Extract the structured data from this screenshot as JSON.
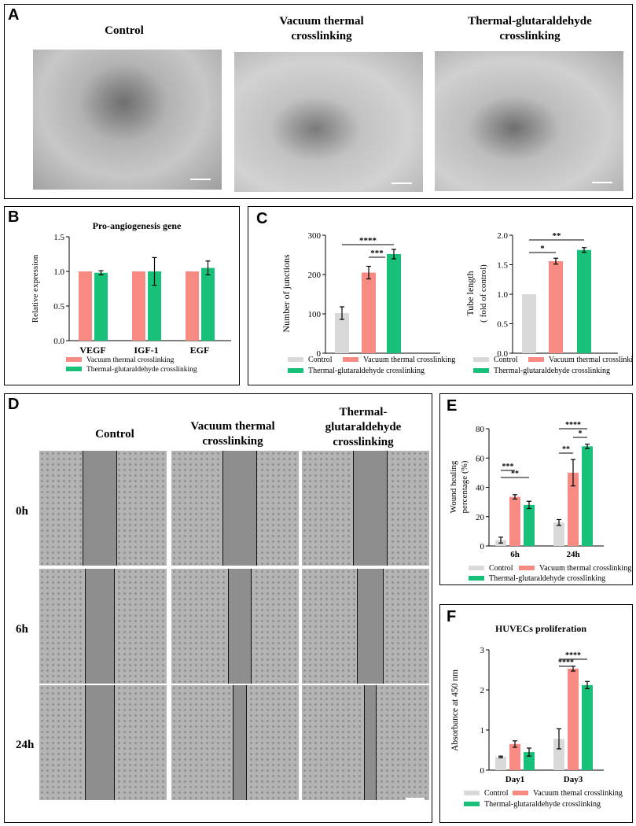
{
  "colors": {
    "control": "#d9d9d9",
    "vacuum": "#f88a84",
    "glut": "#19c07a"
  },
  "panelA": {
    "label": "A",
    "titles": [
      [
        "Control"
      ],
      [
        "Vacuum thermal",
        "crosslinking"
      ],
      [
        "Thermal-glutaraldehyde",
        "crosslinking"
      ]
    ]
  },
  "panelD": {
    "label": "D",
    "titles": [
      [
        "Control"
      ],
      [
        "Vacuum thermal",
        "crosslinking"
      ],
      [
        "Thermal-",
        "glutaraldehyde",
        "crosslinking"
      ]
    ],
    "rows": [
      "0h",
      "6h",
      "24h"
    ],
    "gap_fraction": [
      [
        0.27,
        0.27,
        0.27
      ],
      [
        0.24,
        0.19,
        0.21
      ],
      [
        0.24,
        0.11,
        0.1
      ]
    ]
  },
  "legend": {
    "control": "Control",
    "vacuum": "Vacuum thermal crosslinking",
    "glut": "Thermal-glutaraldehyde crosslinking",
    "vacuum_F": "Vacuum themal crosslinking"
  },
  "chart_data": [
    {
      "panel": "B",
      "type": "bar",
      "title": "Pro-angiogenesis gene",
      "categories": [
        "VEGF",
        "IGF-1",
        "EGF"
      ],
      "ylabel": "Relative expression",
      "ylim": [
        0,
        1.5
      ],
      "yticks": [
        0.0,
        0.5,
        1.0,
        1.5
      ],
      "series": [
        {
          "name": "Vacuum thermal crosslinking",
          "values": [
            1.0,
            1.0,
            1.0
          ],
          "errors": [
            0,
            0,
            0
          ]
        },
        {
          "name": "Thermal-glutaraldehyde crosslinking",
          "values": [
            0.98,
            1.0,
            1.05
          ],
          "errors": [
            0.03,
            0.2,
            0.1
          ]
        }
      ]
    },
    {
      "panel": "C1",
      "type": "bar",
      "title": "",
      "categories": [
        "Control",
        "Vacuum thermal crosslinking",
        "Thermal-glutaraldehyde crosslinking"
      ],
      "ylabel": "Number of junctions",
      "ylim": [
        0,
        300
      ],
      "yticks": [
        0,
        100,
        200,
        300
      ],
      "values": [
        102,
        205,
        252
      ],
      "errors": [
        16,
        16,
        12
      ],
      "significance": [
        [
          "1",
          "2",
          "***"
        ],
        [
          "0",
          "2",
          "****"
        ]
      ]
    },
    {
      "panel": "C2",
      "type": "bar",
      "title": "",
      "categories": [
        "Control",
        "Vacuum thermal crosslinking",
        "Thermal-glutaraldehyde crosslinking"
      ],
      "ylabel": "Tube length",
      "ylabel2": "( fold of control)",
      "ylim": [
        0,
        2.0
      ],
      "yticks": [
        0.0,
        0.5,
        1.0,
        1.5,
        2.0
      ],
      "values": [
        1.0,
        1.56,
        1.75
      ],
      "errors": [
        0,
        0.05,
        0.04
      ],
      "significance": [
        [
          "1",
          "2",
          "*"
        ],
        [
          "0",
          "2",
          "**"
        ]
      ]
    },
    {
      "panel": "E",
      "type": "bar",
      "title": "",
      "categories": [
        "6h",
        "24h"
      ],
      "ylabel": "Wound healing",
      "ylabel2": "percentage (%)",
      "ylim": [
        0,
        80
      ],
      "yticks": [
        0,
        20,
        40,
        60,
        80
      ],
      "series": [
        {
          "name": "Control",
          "values": [
            4,
            16
          ],
          "errors": [
            2,
            2
          ]
        },
        {
          "name": "Vacuum thermal crosslinking",
          "values": [
            33.5,
            50
          ],
          "errors": [
            1.5,
            9
          ]
        },
        {
          "name": "Thermal-glutaraldehyde crosslinking",
          "values": [
            28,
            68
          ],
          "errors": [
            2.5,
            1.5
          ]
        }
      ],
      "significance": [
        [
          "0",
          "0",
          "1",
          "***"
        ],
        [
          "0",
          "0",
          "2",
          "**"
        ],
        [
          "1",
          "1",
          "2",
          "*"
        ],
        [
          "1",
          "0",
          "1",
          "**"
        ],
        [
          "1",
          "0",
          "2",
          "****"
        ]
      ]
    },
    {
      "panel": "F",
      "type": "bar",
      "title": "HUVECs proliferation",
      "categories": [
        "Day1",
        "Day3"
      ],
      "ylabel": "Absorbance at 450 nm",
      "ylim": [
        0,
        3
      ],
      "yticks": [
        0,
        1,
        2,
        3
      ],
      "series": [
        {
          "name": "Control",
          "values": [
            0.33,
            0.78
          ],
          "errors": [
            0.02,
            0.25
          ]
        },
        {
          "name": "Vacuum themal crosslinking",
          "values": [
            0.65,
            2.53
          ],
          "errors": [
            0.08,
            0.06
          ]
        },
        {
          "name": "Thermal-glutaraldehyde crosslinking",
          "values": [
            0.45,
            2.12
          ],
          "errors": [
            0.1,
            0.09
          ]
        }
      ],
      "significance": [
        [
          "1",
          "0",
          "1",
          "****"
        ],
        [
          "1",
          "0",
          "2",
          "****"
        ]
      ]
    }
  ]
}
